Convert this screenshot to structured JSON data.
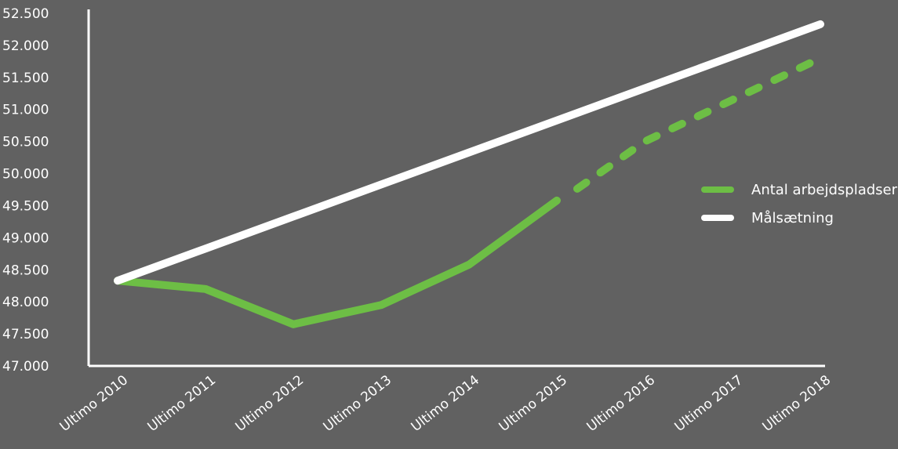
{
  "chart_data": {
    "type": "line",
    "categories": [
      "Ultimo 2010",
      "Ultimo 2011",
      "Ultimo 2012",
      "Ultimo 2013",
      "Ultimo 2014",
      "Ultimo 2015",
      "Ultimo 2016",
      "Ultimo 2017",
      "Ultimo 2018"
    ],
    "y_ticks": [
      "47.000",
      "47.500",
      "48.000",
      "48.500",
      "49.000",
      "49.500",
      "50.000",
      "50.500",
      "51.000",
      "51.500",
      "52.000",
      "52.500"
    ],
    "ylim": [
      47000,
      52500
    ],
    "grid": false,
    "legend": "right",
    "series": [
      {
        "name": "Antal arbejdspladser",
        "color": "#6dbe45",
        "values": [
          48330,
          48200,
          47650,
          47950,
          48580,
          49580,
          50500,
          51150,
          51800
        ],
        "projected_from_index": 5
      },
      {
        "name": "Målsætning",
        "color": "#ffffff",
        "values": [
          48330,
          48830,
          49330,
          49830,
          50330,
          50830,
          51330,
          51830,
          52330
        ]
      }
    ]
  }
}
